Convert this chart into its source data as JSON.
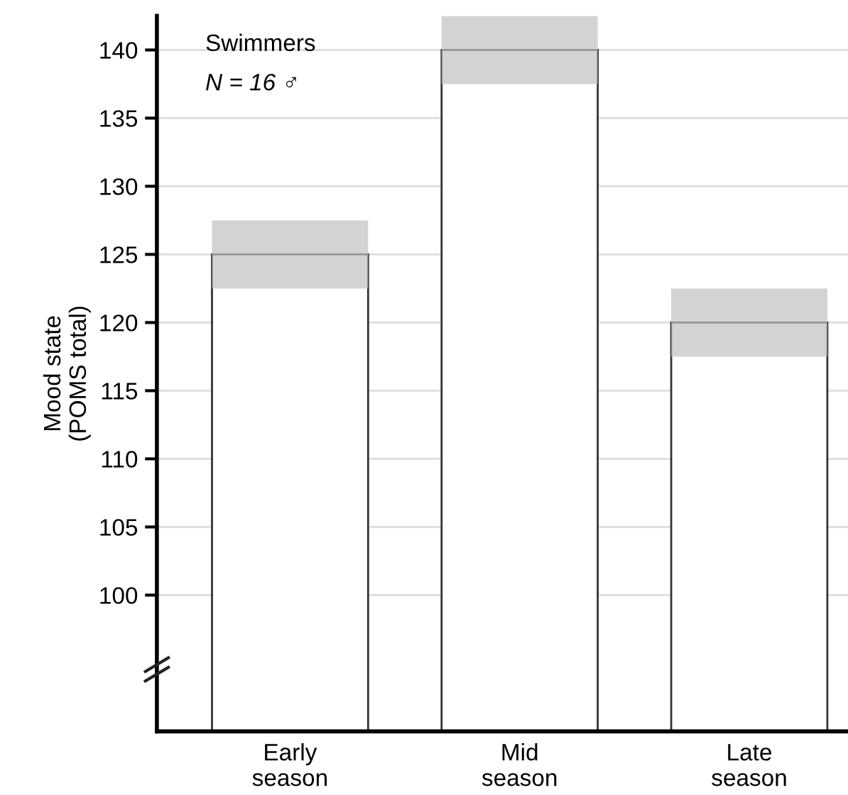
{
  "chart_data": {
    "type": "bar",
    "ylabel": "Mood state\n(POMS total)",
    "categories": [
      "Early\nseason",
      "Mid\nseason",
      "Late\nseason"
    ],
    "series": [
      {
        "color": "#ffffff",
        "values": [
          125,
          140,
          120
        ],
        "errors": [
          2.5,
          2.5,
          2.5
        ]
      }
    ],
    "ylim": [
      90,
      142.5
    ],
    "yticks": [
      100,
      105,
      110,
      115,
      120,
      125,
      130,
      135,
      140
    ],
    "grid": "y",
    "annotations": [
      "Swimmers",
      "N = 16 ♂"
    ]
  }
}
